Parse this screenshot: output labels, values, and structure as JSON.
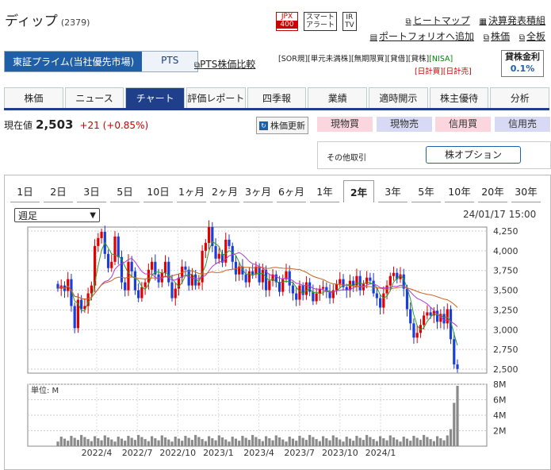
{
  "header": {
    "company_name": "ディップ",
    "code": "(2379)",
    "badges": [
      {
        "top": "JPX",
        "bottom": "400"
      },
      {
        "top": "スマート",
        "bottom": "アラート"
      },
      {
        "top": "IR",
        "bottom": "TV"
      }
    ],
    "links_row1": [
      "ヒートマップ",
      "決算発表積組"
    ],
    "links_row2": [
      "ポートフォリオへ追加",
      "株価",
      "全板"
    ]
  },
  "market": {
    "tabs": [
      "東証プライム(当社優先市場)",
      "PTS"
    ],
    "pts_link": "PTS株価比較",
    "tags_line1": [
      "[SOR規]",
      "[単元未満株]",
      "[無期限買]",
      "[貸借]",
      "[貸株]",
      "[NISA]"
    ],
    "tags_line2": [
      "[日計買]",
      "[日計売]"
    ],
    "rate_label": "貸株金利",
    "rate_value": "0.1%"
  },
  "nav": {
    "items": [
      "株価",
      "ニュース",
      "チャート",
      "評価レポート",
      "四季報",
      "業績",
      "適時開示",
      "株主優待",
      "分析"
    ],
    "active": "チャート"
  },
  "quote": {
    "label": "現在値",
    "price": "2,503",
    "change": "+21 (+0.85%)",
    "refresh_label": "株価更新",
    "buttons": [
      "現物買",
      "現物売",
      "信用買",
      "信用売"
    ],
    "other_label": "その他取引",
    "option_button": "株オプション"
  },
  "chart_controls": {
    "ranges": [
      "1日",
      "2日",
      "3日",
      "5日",
      "10日",
      "1ヶ月",
      "2ヶ月",
      "3ヶ月",
      "6ヶ月",
      "1年",
      "2年",
      "3年",
      "5年",
      "10年",
      "20年",
      "30年"
    ],
    "active_range": "2年",
    "period_select": "週足",
    "datetime": "24/01/17 15:00"
  },
  "chart_data": {
    "type": "candlestick",
    "x_ticks": [
      "2022/4",
      "2022/7",
      "2022/10",
      "2023/1",
      "2023/4",
      "2023/7",
      "2023/10",
      "2024/1"
    ],
    "price_ticks": [
      "4,250",
      "4,000",
      "3,750",
      "3,500",
      "3,250",
      "3,000",
      "2,750",
      "2,500"
    ],
    "price_range": [
      2450,
      4300
    ],
    "volume_unit": "単位: M",
    "volume_ticks": [
      "8M",
      "6M",
      "4M",
      "2M"
    ],
    "volume_range": [
      0,
      8
    ],
    "close": [
      3520,
      3560,
      3490,
      3640,
      3300,
      3020,
      3380,
      3260,
      3300,
      3460,
      3560,
      4060,
      4160,
      4240,
      3960,
      3780,
      3860,
      4180,
      3920,
      3600,
      3500,
      3860,
      3740,
      3500,
      3400,
      3540,
      3600,
      3760,
      3860,
      3700,
      3600,
      3720,
      3860,
      3600,
      3400,
      3520,
      3660,
      3800,
      3760,
      3560,
      3700,
      3560,
      3600,
      4000,
      4100,
      4300,
      4060,
      3900,
      3960,
      3850,
      4140,
      4060,
      3860,
      3700,
      3800,
      3700,
      3600,
      3740,
      3700,
      3800,
      3600,
      3760,
      3500,
      3620,
      3700,
      3600,
      3480,
      3640,
      3740,
      3560,
      3460,
      3380,
      3560,
      3440,
      3600,
      3480,
      3360,
      3460,
      3520,
      3540,
      3480,
      3400,
      3500,
      3580,
      3640,
      3540,
      3500,
      3620,
      3560,
      3680,
      3500,
      3580,
      3660,
      3620,
      3460,
      3400,
      3280,
      3460,
      3560,
      3680,
      3720,
      3640,
      3700,
      3520,
      3260,
      3080,
      2900,
      2960,
      3060,
      3180,
      3220,
      3180,
      3240,
      3100,
      3200,
      3080,
      3260,
      2880,
      2560,
      2503
    ]
  }
}
